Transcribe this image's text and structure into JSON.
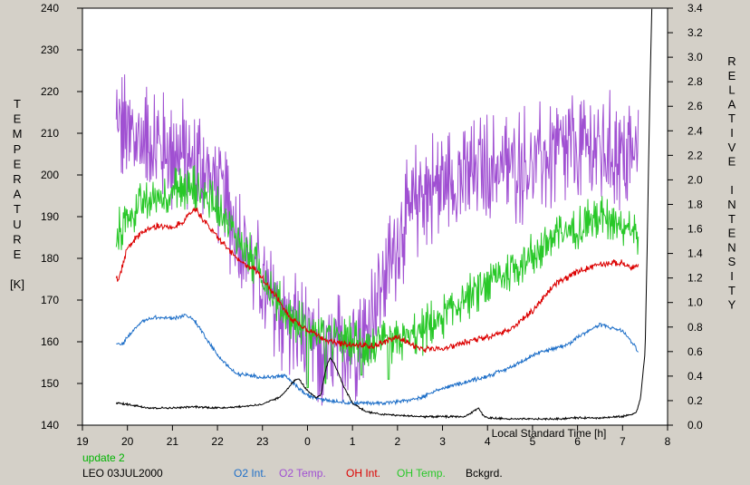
{
  "chart_data": {
    "type": "line",
    "xlabel": "Local Standard Time [h]",
    "ylabel_left_letters": [
      "T",
      "E",
      "M",
      "P",
      "E",
      "R",
      "A",
      "T",
      "U",
      "R",
      "E",
      "",
      "[K]"
    ],
    "ylabel_right_letters": [
      "R",
      "E",
      "L",
      "A",
      "T",
      "I",
      "V",
      "E",
      "",
      "I",
      "N",
      "T",
      "E",
      "N",
      "S",
      "I",
      "T",
      "Y"
    ],
    "x_ticks": [
      "19",
      "20",
      "21",
      "22",
      "23",
      "0",
      "1",
      "2",
      "3",
      "4",
      "5",
      "6",
      "7",
      "8"
    ],
    "y_left_ticks": [
      "140",
      "150",
      "160",
      "170",
      "180",
      "190",
      "200",
      "210",
      "220",
      "230",
      "240"
    ],
    "y_right_ticks": [
      "0.0",
      "0.2",
      "0.4",
      "0.6",
      "0.8",
      "1.0",
      "1.2",
      "1.4",
      "1.6",
      "1.8",
      "2.0",
      "2.2",
      "2.4",
      "2.6",
      "2.8",
      "3.0",
      "3.2",
      "3.4"
    ],
    "xlim": [
      19,
      32
    ],
    "ylim_left": [
      140,
      240
    ],
    "ylim_right": [
      0,
      3.4
    ],
    "notes": {
      "update": "update 2",
      "station": "LEO 03JUL2000"
    },
    "colors": {
      "O2_int": "#1e6fc8",
      "O2_temp": "#a050d2",
      "OH_int": "#dc0000",
      "OH_temp": "#28c828",
      "bckgrd": "#000000",
      "update_text": "#00b400"
    },
    "series": [
      {
        "name": "O2 Temp.",
        "axis": "left",
        "color_key": "O2_temp",
        "noise": 10,
        "x": [
          19.75,
          20.0,
          20.5,
          21.0,
          21.5,
          22.0,
          22.5,
          22.8,
          23.0,
          23.3,
          23.6,
          24.0,
          24.3,
          24.6,
          25.0,
          25.3,
          25.5,
          25.8,
          26.0,
          26.5,
          27.0,
          27.5,
          28.0,
          28.5,
          29.0,
          29.5,
          30.0,
          30.5,
          31.0,
          31.2,
          31.35
        ],
        "y": [
          212,
          210,
          208,
          205,
          203,
          198,
          185,
          178,
          172,
          168,
          164,
          160,
          156,
          157,
          160,
          163,
          170,
          178,
          185,
          195,
          198,
          200,
          201,
          202,
          203,
          205,
          206,
          206,
          205,
          204,
          205
        ]
      },
      {
        "name": "OH Temp.",
        "axis": "left",
        "color_key": "OH_temp",
        "noise": 4,
        "x": [
          19.75,
          20.0,
          20.5,
          21.0,
          21.5,
          22.0,
          22.5,
          23.0,
          23.3,
          23.6,
          24.0,
          24.5,
          25.0,
          25.5,
          26.0,
          26.5,
          27.0,
          27.5,
          28.0,
          28.5,
          29.0,
          29.5,
          30.0,
          30.5,
          31.0,
          31.2,
          31.35
        ],
        "y": [
          185,
          190,
          194,
          196,
          197,
          193,
          184,
          176,
          170,
          166,
          163,
          161,
          160,
          159,
          160,
          162,
          166,
          170,
          174,
          177,
          181,
          185,
          188,
          190,
          189,
          187,
          186
        ],
        "spikes": [
          [
            24.0,
            149
          ],
          [
            24.4,
            150
          ],
          [
            25.2,
            152
          ],
          [
            25.8,
            151
          ],
          [
            26.2,
            163
          ],
          [
            26.6,
            162
          ]
        ]
      },
      {
        "name": "OH Int.",
        "axis": "right",
        "color_key": "OH_int",
        "noise": 0.02,
        "x": [
          19.75,
          19.8,
          20.0,
          20.3,
          20.7,
          21.0,
          21.3,
          21.5,
          21.8,
          22.0,
          22.2,
          22.5,
          22.8,
          23.0,
          23.3,
          23.6,
          24.0,
          24.5,
          25.0,
          25.5,
          26.0,
          26.5,
          27.0,
          27.5,
          28.0,
          28.5,
          29.0,
          29.5,
          30.0,
          30.5,
          31.0,
          31.2,
          31.35
        ],
        "y": [
          1.2,
          1.18,
          1.45,
          1.57,
          1.63,
          1.6,
          1.68,
          1.77,
          1.62,
          1.53,
          1.45,
          1.33,
          1.28,
          1.2,
          1.05,
          0.88,
          0.78,
          0.68,
          0.65,
          0.65,
          0.72,
          0.62,
          0.62,
          0.68,
          0.72,
          0.78,
          0.93,
          1.15,
          1.25,
          1.32,
          1.32,
          1.28,
          1.3
        ]
      },
      {
        "name": "O2 Int.",
        "axis": "right",
        "color_key": "O2_int",
        "noise": 0.012,
        "x": [
          19.75,
          19.9,
          20.0,
          20.3,
          20.6,
          21.0,
          21.3,
          21.5,
          22.0,
          22.4,
          22.8,
          23.0,
          23.5,
          24.0,
          24.5,
          25.0,
          25.5,
          26.0,
          26.5,
          27.0,
          27.5,
          28.0,
          28.5,
          29.0,
          29.5,
          29.8,
          30.0,
          30.5,
          31.0,
          31.2,
          31.35
        ],
        "y": [
          0.66,
          0.66,
          0.72,
          0.84,
          0.88,
          0.87,
          0.9,
          0.85,
          0.57,
          0.42,
          0.4,
          0.39,
          0.4,
          0.24,
          0.2,
          0.18,
          0.18,
          0.19,
          0.22,
          0.3,
          0.35,
          0.4,
          0.47,
          0.57,
          0.63,
          0.66,
          0.72,
          0.82,
          0.77,
          0.68,
          0.6
        ]
      },
      {
        "name": "Bckgrd.",
        "axis": "right",
        "color_key": "bckgrd",
        "noise": 0.006,
        "x": [
          19.75,
          20.0,
          20.5,
          21.0,
          21.5,
          22.0,
          22.5,
          23.0,
          23.4,
          23.7,
          23.8,
          24.0,
          24.2,
          24.3,
          24.4,
          24.5,
          24.6,
          24.8,
          25.0,
          25.3,
          25.6,
          26.0,
          26.5,
          27.0,
          27.5,
          27.8,
          27.9,
          28.0,
          28.5,
          29.0,
          29.5,
          30.0,
          30.5,
          31.0,
          31.3,
          31.4,
          31.5,
          31.55,
          31.6,
          31.65
        ],
        "y": [
          0.18,
          0.17,
          0.14,
          0.14,
          0.15,
          0.14,
          0.15,
          0.17,
          0.23,
          0.36,
          0.38,
          0.28,
          0.22,
          0.25,
          0.45,
          0.55,
          0.5,
          0.32,
          0.18,
          0.11,
          0.09,
          0.08,
          0.07,
          0.07,
          0.07,
          0.14,
          0.08,
          0.06,
          0.05,
          0.05,
          0.05,
          0.06,
          0.06,
          0.07,
          0.1,
          0.22,
          0.6,
          1.5,
          2.6,
          3.4
        ]
      }
    ]
  }
}
